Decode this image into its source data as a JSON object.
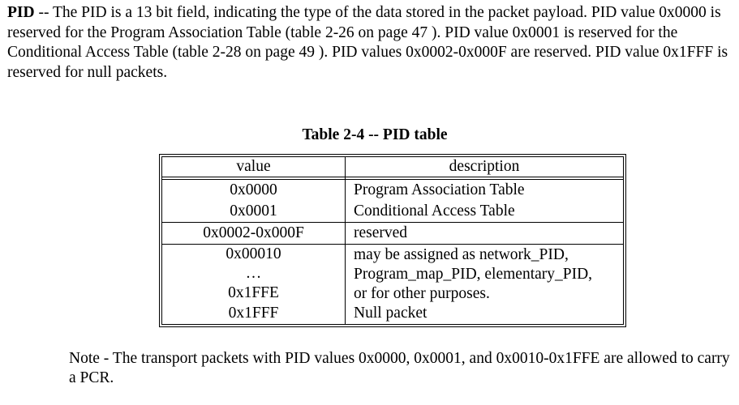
{
  "paragraph": {
    "term": "PID",
    "text": " -- The PID is a 13 bit field, indicating the type of the data stored in the packet payload. PID value 0x0000 is reserved for the Program Association Table (table 2-26 on page 47 ). PID value 0x0001 is reserved for the Conditional Access Table (table 2-28 on page 49 ). PID values 0x0002-0x000F are reserved. PID value 0x1FFF is reserved for null packets."
  },
  "table": {
    "caption": "Table 2-4 -- PID table",
    "headers": {
      "value": "value",
      "description": "description"
    },
    "rows": [
      {
        "value": "0x0000",
        "description": "Program Association Table"
      },
      {
        "value": "0x0001",
        "description": "Conditional Access Table"
      },
      {
        "value": "0x0002-0x000F",
        "description": "reserved"
      }
    ],
    "group": {
      "values": [
        "0x00010",
        "…",
        "0x1FFE"
      ],
      "description_lines": [
        "may be assigned as network_PID,",
        "Program_map_PID, elementary_PID,",
        "or for other purposes."
      ]
    },
    "last_row": {
      "value": "0x1FFF",
      "description": "Null packet"
    }
  },
  "note": {
    "text": "Note - The transport packets with PID values 0x0000, 0x0001, and 0x0010-0x1FFE are allowed to carry a PCR."
  }
}
